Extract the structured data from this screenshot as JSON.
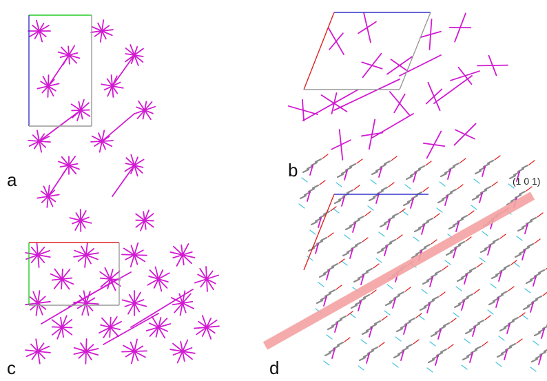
{
  "panels": [
    {
      "label": "a"
    },
    {
      "label": "b"
    },
    {
      "label": "c"
    },
    {
      "label": "d"
    }
  ],
  "plane_label": "(1 0 1)"
}
